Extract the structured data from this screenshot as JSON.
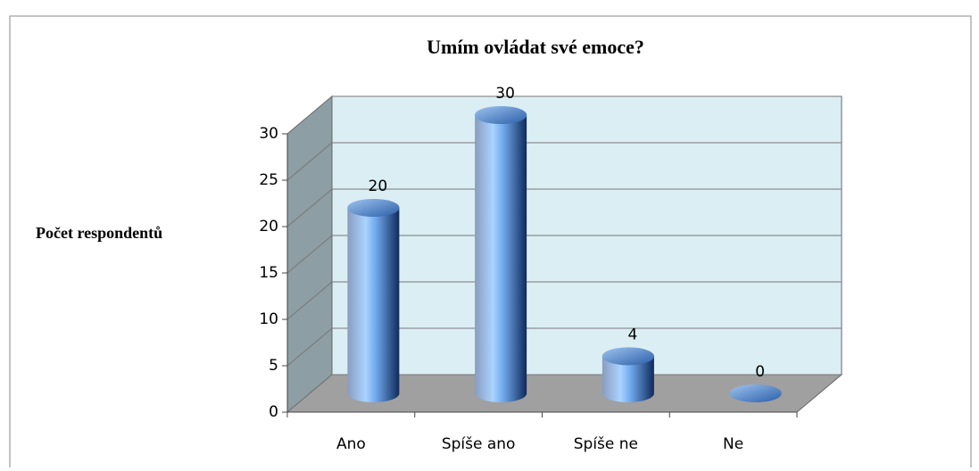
{
  "chart_data": {
    "type": "bar3d",
    "title": "Umím ovládat své emoce?",
    "y_label": "Počet respondentů",
    "categories": [
      "Ano",
      "Spíše ano",
      "Spíše ne",
      "Ne"
    ],
    "values": [
      20,
      30,
      4,
      0
    ],
    "ylim": [
      0,
      30
    ],
    "yticks": [
      0,
      5,
      10,
      15,
      20,
      25,
      30
    ],
    "grid": true,
    "color": "#2f5f9e"
  }
}
